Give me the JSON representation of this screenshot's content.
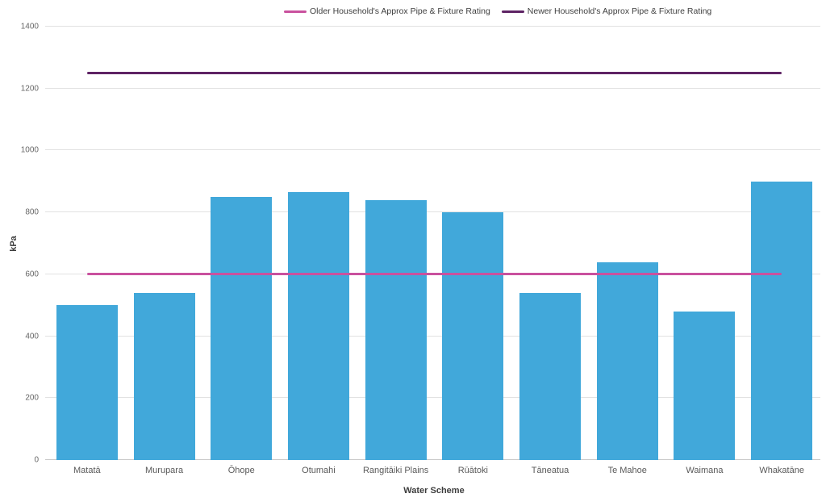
{
  "chart_data": {
    "type": "bar",
    "title": "",
    "xlabel": "Water Scheme",
    "ylabel": "kPa",
    "ylim": [
      0,
      1400
    ],
    "yticks": [
      0,
      200,
      400,
      600,
      800,
      1000,
      1200,
      1400
    ],
    "grid": "horizontal",
    "legend_position": "top-center",
    "bar_color": "#41a8da",
    "categories": [
      "Matatā",
      "Murupara",
      "Ōhope",
      "Otumahi",
      "Rangitāiki Plains",
      "Rūātoki",
      "Tāneatua",
      "Te Mahoe",
      "Waimana",
      "Whakatāne"
    ],
    "values": [
      500,
      540,
      850,
      865,
      840,
      800,
      540,
      640,
      480,
      900
    ],
    "ref_lines": [
      {
        "name": "Older Household's Approx Pipe & Fixture Rating",
        "value": 600,
        "color": "#c9519e"
      },
      {
        "name": "Newer Household's Approx Pipe & Fixture Rating",
        "value": 1250,
        "color": "#5e2364"
      }
    ]
  }
}
